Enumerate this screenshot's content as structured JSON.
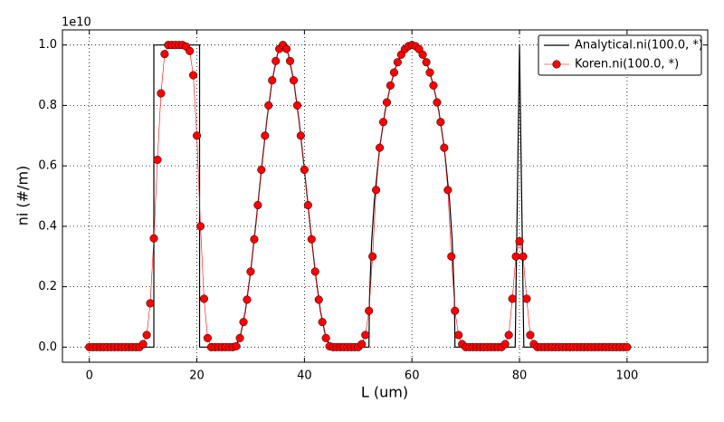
{
  "chart_data": {
    "type": "line",
    "xlabel": "L (um)",
    "ylabel": "ni (#/m)",
    "y_offset_label": "1e10",
    "xlim": [
      -5,
      115
    ],
    "ylim": [
      -0.05,
      1.05
    ],
    "xticks": [
      0,
      20,
      40,
      60,
      80,
      100
    ],
    "yticks": [
      {
        "value": 0.0,
        "label": "0.0"
      },
      0.2,
      0.4,
      0.6,
      0.8,
      {
        "value": 1.0,
        "label": "1.0"
      }
    ],
    "grid": true,
    "legend": "upper right",
    "series": [
      {
        "name": "Analytical.ni(100.0, *)",
        "color": "#000000",
        "x": [
          0,
          12,
          12,
          20.5,
          20.5,
          27,
          28,
          29,
          30,
          31,
          32,
          33,
          34,
          35,
          36,
          37,
          38,
          39,
          40,
          41,
          42,
          43,
          44,
          45,
          52,
          52.1,
          52.5,
          53,
          54,
          55,
          56,
          57,
          58,
          59,
          60,
          61,
          62,
          63,
          64,
          65,
          66,
          67,
          67.5,
          67.9,
          68,
          79.2,
          80,
          80.8,
          100
        ],
        "values": [
          0,
          0,
          1,
          1,
          0,
          0,
          0.03,
          0.117,
          0.25,
          0.413,
          0.587,
          0.75,
          0.883,
          0.97,
          1,
          0.97,
          0.883,
          0.75,
          0.587,
          0.413,
          0.25,
          0.117,
          0.03,
          0,
          0,
          0.158,
          0.348,
          0.484,
          0.661,
          0.781,
          0.866,
          0.927,
          0.968,
          0.992,
          1,
          0.992,
          0.968,
          0.927,
          0.866,
          0.781,
          0.661,
          0.484,
          0.348,
          0.158,
          0,
          0,
          1,
          0,
          0
        ]
      },
      {
        "name": "Koren.ni(100.0, *)",
        "color": "#ff0000",
        "marker": "o",
        "x": [
          0,
          0.67,
          1.33,
          2,
          2.67,
          3.33,
          4,
          4.67,
          5.33,
          6,
          6.67,
          7.33,
          8,
          8.67,
          9.33,
          10,
          10.67,
          11.33,
          12,
          12.67,
          13.33,
          14,
          14.67,
          15.33,
          16,
          16.67,
          17.33,
          18,
          18.67,
          19.33,
          20,
          20.67,
          21.33,
          22,
          22.67,
          23.33,
          24,
          24.67,
          25.33,
          26,
          26.67,
          27.33,
          28,
          28.67,
          29.33,
          30,
          30.67,
          31.33,
          32,
          32.67,
          33.33,
          34,
          34.67,
          35.33,
          36,
          36.67,
          37.33,
          38,
          38.67,
          39.33,
          40,
          40.67,
          41.33,
          42,
          42.67,
          43.33,
          44,
          44.67,
          45.33,
          46,
          46.67,
          47.33,
          48,
          48.67,
          49.33,
          50,
          50.67,
          51.33,
          52,
          52.67,
          53.33,
          54,
          54.67,
          55.33,
          56,
          56.67,
          57.33,
          58,
          58.67,
          59.33,
          60,
          60.67,
          61.33,
          62,
          62.67,
          63.33,
          64,
          64.67,
          65.33,
          66,
          66.67,
          67.33,
          68,
          68.67,
          69.33,
          70,
          70.67,
          71.33,
          72,
          72.67,
          73.33,
          74,
          74.67,
          75.33,
          76,
          76.67,
          77.33,
          78,
          78.67,
          79.33,
          80,
          80.67,
          81.33,
          82,
          82.67,
          83.33,
          84,
          84.67,
          85.33,
          86,
          86.67,
          87.33,
          88,
          88.67,
          89.33,
          90,
          90.67,
          91.33,
          92,
          92.67,
          93.33,
          94,
          94.67,
          95.33,
          96,
          96.67,
          97.33,
          98,
          98.67,
          99.33,
          100
        ],
        "values": [
          0,
          0,
          0,
          0,
          0,
          0,
          0,
          0,
          0,
          0,
          0,
          0,
          0,
          0,
          0,
          0.01,
          0.04,
          0.145,
          0.36,
          0.62,
          0.84,
          0.97,
          1.0,
          1.0,
          1.0,
          1.0,
          1.0,
          0.995,
          0.98,
          0.9,
          0.7,
          0.4,
          0.16,
          0.03,
          0,
          0,
          0,
          0,
          0,
          0,
          0,
          0.003,
          0.03,
          0.083,
          0.157,
          0.25,
          0.357,
          0.47,
          0.587,
          0.7,
          0.8,
          0.883,
          0.947,
          0.987,
          1.0,
          0.987,
          0.947,
          0.883,
          0.8,
          0.7,
          0.587,
          0.47,
          0.357,
          0.25,
          0.157,
          0.083,
          0.03,
          0.003,
          0,
          0,
          0,
          0,
          0,
          0,
          0,
          0,
          0.01,
          0.04,
          0.12,
          0.3,
          0.52,
          0.66,
          0.745,
          0.81,
          0.866,
          0.909,
          0.943,
          0.968,
          0.986,
          0.996,
          1.0,
          0.996,
          0.986,
          0.968,
          0.943,
          0.909,
          0.866,
          0.81,
          0.745,
          0.66,
          0.52,
          0.3,
          0.12,
          0.04,
          0.01,
          0,
          0,
          0,
          0,
          0,
          0,
          0,
          0,
          0,
          0,
          0,
          0.01,
          0.04,
          0.16,
          0.3,
          0.35,
          0.3,
          0.16,
          0.04,
          0.01,
          0,
          0,
          0,
          0,
          0,
          0,
          0,
          0,
          0,
          0,
          0,
          0,
          0,
          0,
          0,
          0,
          0,
          0,
          0,
          0,
          0,
          0,
          0,
          0,
          0,
          0
        ]
      }
    ]
  }
}
